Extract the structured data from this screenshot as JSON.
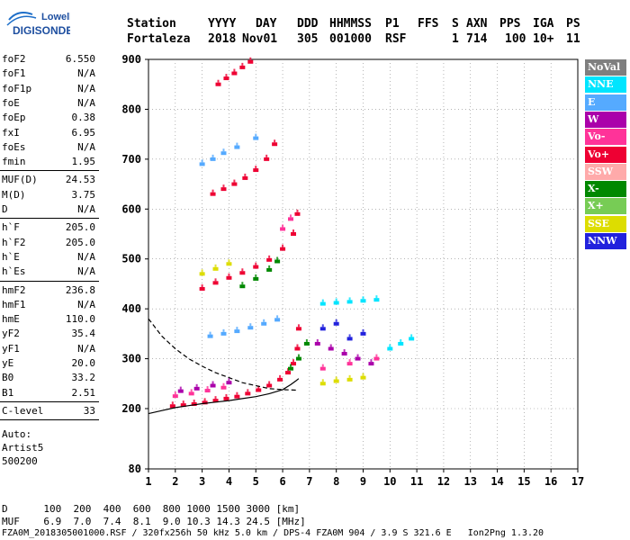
{
  "logo": {
    "line1": "Lowell",
    "line2": "DIGISONDE"
  },
  "header": {
    "labels": [
      "Station",
      "YYYY",
      "DAY",
      "DDD",
      "HHMMSS",
      "P1",
      "FFS",
      "S",
      "AXN",
      "PPS",
      "IGA",
      "PS"
    ],
    "values": [
      "Fortaleza",
      "2018",
      "Nov01",
      "305",
      "001000",
      "RSF",
      "",
      "1",
      "714",
      "100",
      "10+",
      "11"
    ]
  },
  "params_group1": [
    {
      "name": "foF2",
      "value": "6.550"
    },
    {
      "name": "foF1",
      "value": "N/A"
    },
    {
      "name": "foF1p",
      "value": "N/A"
    },
    {
      "name": "foE",
      "value": "N/A"
    },
    {
      "name": "foEp",
      "value": "0.38"
    },
    {
      "name": "fxI",
      "value": "6.95"
    },
    {
      "name": "foEs",
      "value": "N/A"
    },
    {
      "name": "fmin",
      "value": "1.95"
    }
  ],
  "params_group2": [
    {
      "name": "MUF(D)",
      "value": "24.53"
    },
    {
      "name": "M(D)",
      "value": "3.75"
    },
    {
      "name": "D",
      "value": "N/A"
    }
  ],
  "params_group3": [
    {
      "name": "h`F",
      "value": "205.0"
    },
    {
      "name": "h`F2",
      "value": "205.0"
    },
    {
      "name": "h`E",
      "value": "N/A"
    },
    {
      "name": "h`Es",
      "value": "N/A"
    }
  ],
  "params_group4": [
    {
      "name": "hmF2",
      "value": "236.8"
    },
    {
      "name": "hmF1",
      "value": "N/A"
    },
    {
      "name": "hmE",
      "value": "110.0"
    },
    {
      "name": "yF2",
      "value": "35.4"
    },
    {
      "name": "yF1",
      "value": "N/A"
    },
    {
      "name": "yE",
      "value": "20.0"
    },
    {
      "name": "B0",
      "value": "33.2"
    },
    {
      "name": "B1",
      "value": "2.51"
    }
  ],
  "params_group5": [
    {
      "name": "C-level",
      "value": "33"
    }
  ],
  "auto": {
    "line1": "Auto:",
    "line2": "Artist5",
    "line3": "500200"
  },
  "legend": [
    {
      "label": "NoVal",
      "color": "#7f7f7f"
    },
    {
      "label": "NNE",
      "color": "#00e5ff"
    },
    {
      "label": "E",
      "color": "#55aaff"
    },
    {
      "label": "W",
      "color": "#aa00aa"
    },
    {
      "label": "Vo-",
      "color": "#ff3399"
    },
    {
      "label": "Vo+",
      "color": "#ee0033"
    },
    {
      "label": "SSW",
      "color": "#ffaaaa"
    },
    {
      "label": "X-",
      "color": "#008800"
    },
    {
      "label": "X+",
      "color": "#77cc55"
    },
    {
      "label": "SSE",
      "color": "#dddd00"
    },
    {
      "label": "NNW",
      "color": "#2222dd"
    }
  ],
  "footer": {
    "d_line": "D      100  200  400  600  800 1000 1500 3000 [km]",
    "muf_line": "MUF    6.9  7.0  7.4  8.1  9.0 10.3 14.3 24.5 [MHz]",
    "file_line": "FZA0M_2018305001000.RSF / 320fx256h 50 kHz 5.0 km / DPS-4 FZA0M 904 / 3.9 S 321.6 E   Ion2Png 1.3.20"
  },
  "chart_data": {
    "type": "scatter",
    "title": "",
    "xlabel": "",
    "ylabel": "",
    "xlim": [
      1,
      17
    ],
    "ylim": [
      80,
      900
    ],
    "x_ticks": [
      "1",
      "2",
      "3",
      "4",
      "5",
      "6",
      "7",
      "8",
      "9",
      "10",
      "11",
      "12",
      "13",
      "14",
      "15",
      "16",
      "17"
    ],
    "y_ticks": [
      "80",
      "200",
      "300",
      "400",
      "500",
      "600",
      "700",
      "800",
      "900"
    ],
    "grid": true,
    "legend_position": "right",
    "series": [
      {
        "name": "Vo+",
        "color": "#ee0033",
        "points": [
          [
            1.9,
            205
          ],
          [
            2.3,
            207
          ],
          [
            2.7,
            209
          ],
          [
            3.1,
            212
          ],
          [
            3.5,
            216
          ],
          [
            3.9,
            220
          ],
          [
            4.3,
            224
          ],
          [
            4.7,
            230
          ],
          [
            5.1,
            237
          ],
          [
            5.5,
            246
          ],
          [
            5.9,
            258
          ],
          [
            6.2,
            272
          ],
          [
            6.4,
            290
          ],
          [
            6.55,
            320
          ],
          [
            6.6,
            360
          ]
        ]
      },
      {
        "name": "Vo+",
        "color": "#ee0033",
        "points": [
          [
            3.0,
            440
          ],
          [
            3.5,
            452
          ],
          [
            4.0,
            462
          ],
          [
            4.5,
            472
          ],
          [
            5.0,
            484
          ],
          [
            5.5,
            498
          ],
          [
            6.0,
            520
          ],
          [
            6.4,
            550
          ],
          [
            6.55,
            590
          ]
        ]
      },
      {
        "name": "Vo+",
        "color": "#ee0033",
        "points": [
          [
            3.4,
            630
          ],
          [
            3.8,
            640
          ],
          [
            4.2,
            650
          ],
          [
            4.6,
            662
          ],
          [
            5.0,
            678
          ],
          [
            5.4,
            700
          ],
          [
            5.7,
            730
          ]
        ]
      },
      {
        "name": "Vo+",
        "color": "#ee0033",
        "points": [
          [
            3.6,
            850
          ],
          [
            3.9,
            862
          ],
          [
            4.2,
            872
          ],
          [
            4.5,
            884
          ],
          [
            4.8,
            895
          ]
        ]
      },
      {
        "name": "X-",
        "color": "#008800",
        "points": [
          [
            4.5,
            445
          ],
          [
            5.0,
            460
          ],
          [
            5.5,
            478
          ],
          [
            5.8,
            495
          ],
          [
            6.3,
            280
          ],
          [
            6.6,
            300
          ],
          [
            6.9,
            330
          ]
        ]
      },
      {
        "name": "E",
        "color": "#55aaff",
        "points": [
          [
            3.3,
            345
          ],
          [
            3.8,
            350
          ],
          [
            4.3,
            355
          ],
          [
            4.8,
            362
          ],
          [
            5.3,
            370
          ],
          [
            5.8,
            378
          ],
          [
            3.0,
            690
          ],
          [
            3.4,
            700
          ],
          [
            3.8,
            712
          ],
          [
            4.3,
            724
          ],
          [
            5.0,
            742
          ]
        ]
      },
      {
        "name": "NNE",
        "color": "#00e5ff",
        "points": [
          [
            7.5,
            410
          ],
          [
            8.0,
            412
          ],
          [
            8.5,
            414
          ],
          [
            9.0,
            416
          ],
          [
            9.5,
            418
          ],
          [
            10.0,
            320
          ],
          [
            10.4,
            330
          ],
          [
            10.8,
            340
          ]
        ]
      },
      {
        "name": "W",
        "color": "#aa00aa",
        "points": [
          [
            2.2,
            235
          ],
          [
            2.8,
            240
          ],
          [
            3.4,
            246
          ],
          [
            4.0,
            252
          ],
          [
            7.3,
            330
          ],
          [
            7.8,
            320
          ],
          [
            8.3,
            310
          ],
          [
            8.8,
            300
          ],
          [
            9.3,
            290
          ]
        ]
      },
      {
        "name": "Vo-",
        "color": "#ff3399",
        "points": [
          [
            2.0,
            225
          ],
          [
            2.6,
            230
          ],
          [
            3.2,
            236
          ],
          [
            3.8,
            242
          ],
          [
            6.0,
            560
          ],
          [
            6.3,
            580
          ],
          [
            7.5,
            280
          ],
          [
            8.5,
            290
          ],
          [
            9.5,
            300
          ]
        ]
      },
      {
        "name": "SSE",
        "color": "#dddd00",
        "points": [
          [
            3.0,
            470
          ],
          [
            3.5,
            480
          ],
          [
            4.0,
            490
          ],
          [
            7.5,
            250
          ],
          [
            8.0,
            255
          ],
          [
            8.5,
            258
          ],
          [
            9.0,
            262
          ]
        ]
      },
      {
        "name": "NNW",
        "color": "#2222dd",
        "points": [
          [
            7.5,
            360
          ],
          [
            8.0,
            370
          ],
          [
            8.5,
            340
          ],
          [
            9.0,
            350
          ]
        ]
      }
    ],
    "curves": [
      {
        "name": "profile-dashed",
        "style": "dashed",
        "points": [
          [
            1,
            380
          ],
          [
            1.5,
            345
          ],
          [
            2,
            320
          ],
          [
            2.5,
            300
          ],
          [
            3,
            285
          ],
          [
            3.5,
            272
          ],
          [
            4,
            262
          ],
          [
            4.5,
            252
          ],
          [
            5,
            246
          ],
          [
            5.5,
            240
          ],
          [
            6,
            238
          ],
          [
            6.5,
            237
          ]
        ]
      },
      {
        "name": "profile-solid",
        "style": "solid",
        "points": [
          [
            1,
            190
          ],
          [
            1.5,
            196
          ],
          [
            2,
            202
          ],
          [
            2.5,
            206
          ],
          [
            3,
            210
          ],
          [
            3.5,
            213
          ],
          [
            4,
            216
          ],
          [
            4.5,
            220
          ],
          [
            5,
            224
          ],
          [
            5.5,
            230
          ],
          [
            6,
            238
          ],
          [
            6.3,
            248
          ],
          [
            6.5,
            256
          ],
          [
            6.6,
            260
          ]
        ]
      }
    ]
  }
}
